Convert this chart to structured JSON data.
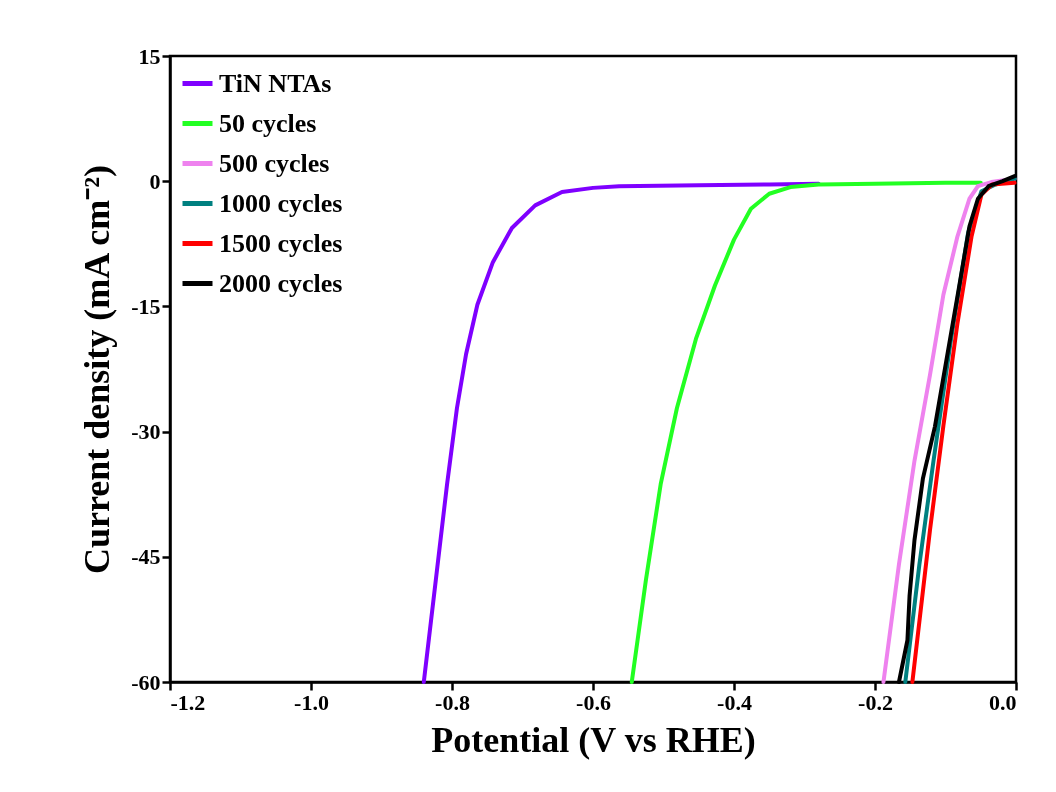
{
  "chart_data": {
    "type": "line",
    "xlabel": "Potential (V vs RHE)",
    "ylabel": "Current density (mA cm⁻²)",
    "xlim": [
      -1.2,
      0
    ],
    "ylim": [
      -60,
      15
    ],
    "xticks": [
      {
        "value": -1.2,
        "label": "-1.2"
      },
      {
        "value": -1,
        "label": "-1.0"
      },
      {
        "value": -0.8,
        "label": "-0.8"
      },
      {
        "value": -0.6,
        "label": "-0.6"
      },
      {
        "value": -0.4,
        "label": "-0.4"
      },
      {
        "value": -0.2,
        "label": "-0.2"
      },
      {
        "value": 0,
        "label": "0.0"
      }
    ],
    "yticks": [
      -60,
      -45,
      -30,
      -15,
      0,
      15
    ],
    "legend": "top left",
    "marker": "none",
    "line_style": "solid",
    "grid": false,
    "series": [
      {
        "name": "TiN NTAs",
        "color": "#7f00ff",
        "x": [
          -0.84,
          -0.823,
          -0.807,
          -0.793,
          -0.78,
          -0.764,
          -0.742,
          -0.715,
          -0.682,
          -0.644,
          -0.6,
          -0.563,
          -0.45,
          -0.35,
          -0.28
        ],
        "values": [
          -60,
          -47.8,
          -36.3,
          -27.2,
          -20.7,
          -14.8,
          -9.7,
          -5.6,
          -2.9,
          -1.3,
          -0.8,
          -0.6,
          -0.5,
          -0.4,
          -0.3
        ]
      },
      {
        "name": "50 cycles",
        "color": "#22ff22",
        "x": [
          -0.545,
          -0.525,
          -0.504,
          -0.481,
          -0.454,
          -0.427,
          -0.4,
          -0.376,
          -0.35,
          -0.32,
          -0.28,
          -0.2,
          -0.1,
          -0.05
        ],
        "values": [
          -60,
          -47.8,
          -36.3,
          -27.2,
          -18.9,
          -12.5,
          -7,
          -3.3,
          -1.5,
          -0.7,
          -0.4,
          -0.3,
          -0.2,
          -0.2
        ]
      },
      {
        "name": "500 cycles",
        "color": "#ee82ee",
        "x": [
          -0.188,
          -0.166,
          -0.144,
          -0.122,
          -0.103,
          -0.083,
          -0.066,
          -0.054,
          -0.035,
          -0.002
        ],
        "values": [
          -60,
          -45.9,
          -33.5,
          -23.2,
          -13.6,
          -6.6,
          -2.1,
          -0.6,
          -0.1,
          0.3
        ]
      },
      {
        "name": "1000 cycles",
        "color": "#008080",
        "x": [
          -0.157,
          -0.137,
          -0.117,
          -0.093,
          -0.068,
          -0.049,
          -0.029,
          -0.002
        ],
        "values": [
          -60,
          -45.9,
          -33.5,
          -19.4,
          -6.2,
          -1.2,
          -0.4,
          0.3
        ]
      },
      {
        "name": "1500 cycles",
        "color": "#ff0000",
        "x": [
          -0.147,
          -0.122,
          -0.103,
          -0.083,
          -0.063,
          -0.049,
          -0.034,
          -0.002
        ],
        "values": [
          -60,
          -41.8,
          -29.3,
          -17,
          -6.6,
          -1.6,
          -0.4,
          -0.2
        ]
      },
      {
        "name": "2000 cycles",
        "color": "#000000",
        "x": [
          -0.166,
          -0.154,
          -0.151,
          -0.144,
          -0.132,
          -0.115,
          -0.098,
          -0.081,
          -0.066,
          -0.054,
          -0.039,
          -0.019,
          -0.002
        ],
        "values": [
          -60,
          -55,
          -49.7,
          -43,
          -35.6,
          -29.4,
          -21.1,
          -12.8,
          -5.4,
          -2.1,
          -0.6,
          0,
          0.6
        ]
      }
    ]
  }
}
